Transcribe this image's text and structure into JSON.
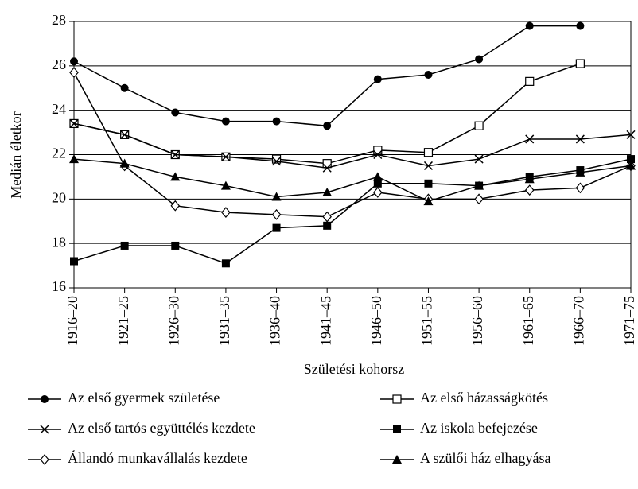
{
  "chart_data": {
    "type": "line",
    "y_label": "Medián életkor",
    "x_label": "Születési kohorsz",
    "categories": [
      "1916–20",
      "1921–25",
      "1926–30",
      "1931–35",
      "1936–40",
      "1941–45",
      "1946–50",
      "1951–55",
      "1956–60",
      "1961–65",
      "1966–70",
      "1971–75"
    ],
    "ylim": [
      16,
      28
    ],
    "yticks": [
      16,
      18,
      20,
      22,
      24,
      26,
      28
    ],
    "grid": true,
    "legend": "bottom",
    "series": [
      {
        "name": "Az első gyermek születése",
        "color": "#000000",
        "marker": "circle",
        "values": [
          26.2,
          25.0,
          23.9,
          23.5,
          23.5,
          23.3,
          25.4,
          25.6,
          26.3,
          27.8,
          27.8,
          null
        ]
      },
      {
        "name": "Az első házasságkötés",
        "color": "#000000",
        "marker": "square-open",
        "values": [
          23.4,
          22.9,
          22.0,
          21.9,
          21.8,
          21.6,
          22.2,
          22.1,
          23.3,
          25.3,
          26.1,
          null
        ]
      },
      {
        "name": "Az első tartós együttélés kezdete",
        "color": "#000000",
        "marker": "x",
        "values": [
          23.4,
          22.9,
          22.0,
          21.9,
          21.7,
          21.4,
          22.0,
          21.5,
          21.8,
          22.7,
          22.7,
          22.9
        ]
      },
      {
        "name": "Az iskola befejezése",
        "color": "#000000",
        "marker": "square",
        "values": [
          17.2,
          17.9,
          17.9,
          17.1,
          18.7,
          18.8,
          20.7,
          20.7,
          20.6,
          21.0,
          21.3,
          21.8
        ]
      },
      {
        "name": "Állandó munkavállalás kezdete",
        "color": "#000000",
        "marker": "diamond-open",
        "values": [
          25.7,
          21.5,
          19.7,
          19.4,
          19.3,
          19.2,
          20.3,
          20.0,
          20.0,
          20.4,
          20.5,
          21.5
        ]
      },
      {
        "name": "A szülői ház elhagyása",
        "color": "#000000",
        "marker": "triangle",
        "values": [
          21.8,
          21.6,
          21.0,
          20.6,
          20.1,
          20.3,
          21.0,
          19.9,
          20.6,
          20.9,
          21.2,
          21.5
        ]
      }
    ]
  }
}
